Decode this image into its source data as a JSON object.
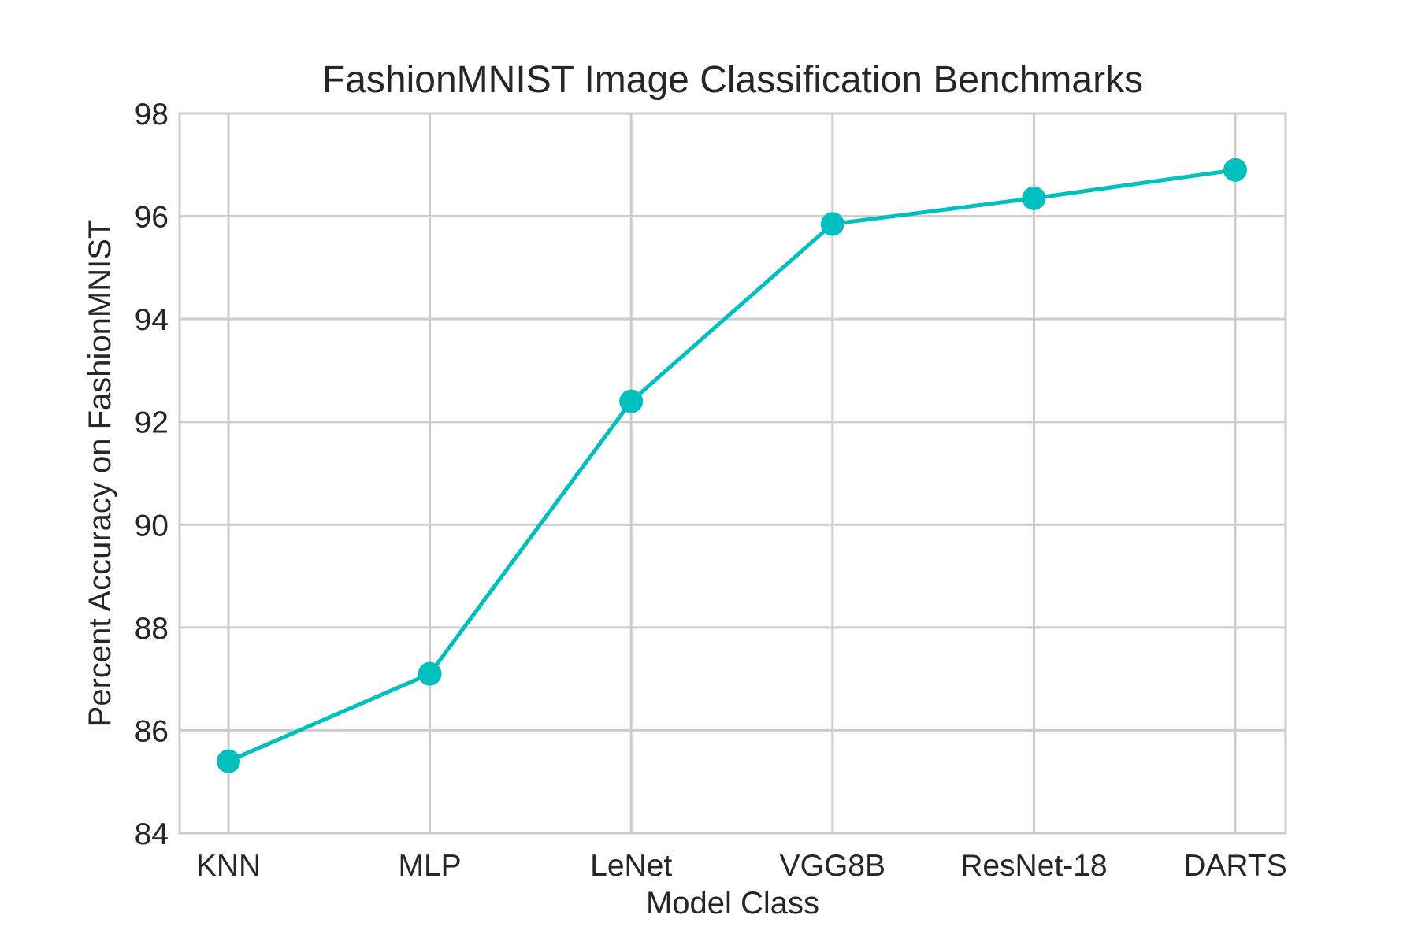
{
  "chart_data": {
    "type": "line",
    "title": "FashionMNIST Image Classification Benchmarks",
    "xlabel": "Model Class",
    "ylabel": "Percent Accuracy on FashionMNIST",
    "categories": [
      "KNN",
      "MLP",
      "LeNet",
      "VGG8B",
      "ResNet-18",
      "DARTS"
    ],
    "series": [
      {
        "values": [
          85.4,
          87.1,
          92.4,
          95.85,
          96.35,
          96.9
        ],
        "color": "#00bfbf",
        "marker": "circle"
      }
    ],
    "ylim": [
      84,
      98
    ],
    "yticks": [
      "84",
      "86",
      "88",
      "90",
      "92",
      "94",
      "96",
      "98"
    ],
    "grid": true,
    "legend": "none"
  }
}
